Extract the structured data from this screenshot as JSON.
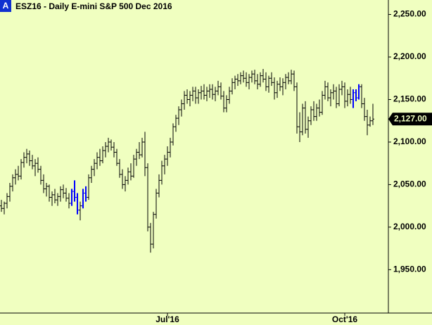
{
  "chart_data": {
    "type": "ohlc",
    "title": "ESZ16 - Daily  E-mini S&P 500 Dec 2016",
    "badge": "A",
    "color": "#000000",
    "highlight_color": "#0000ff",
    "highlighted": [
      25,
      26,
      27,
      29,
      30,
      125,
      126,
      127
    ],
    "ylim": [
      1899,
      2267
    ],
    "yticks": [
      {
        "value": 1950,
        "label": "1,950.00"
      },
      {
        "value": 2000,
        "label": "2,000.00"
      },
      {
        "value": 2050,
        "label": "2,050.00"
      },
      {
        "value": 2100,
        "label": "2,100.00"
      },
      {
        "value": 2150,
        "label": "2,150.00"
      },
      {
        "value": 2200,
        "label": "2,200.00"
      },
      {
        "value": 2250,
        "label": "2,250.00"
      }
    ],
    "xlim": [
      -0.5,
      137.5
    ],
    "xticks": [
      {
        "value": 59,
        "label": "Jul'16"
      },
      {
        "value": 122,
        "label": "Oct'16"
      }
    ],
    "last": {
      "value": 2127,
      "label": "2,127.00"
    },
    "ohlc": [
      [
        2025,
        2032,
        2018,
        2022
      ],
      [
        2022,
        2030,
        2015,
        2028
      ],
      [
        2028,
        2040,
        2022,
        2036
      ],
      [
        2036,
        2052,
        2030,
        2048
      ],
      [
        2048,
        2062,
        2042,
        2058
      ],
      [
        2058,
        2068,
        2050,
        2062
      ],
      [
        2062,
        2072,
        2055,
        2060
      ],
      [
        2060,
        2080,
        2056,
        2076
      ],
      [
        2076,
        2088,
        2070,
        2082
      ],
      [
        2082,
        2092,
        2075,
        2086
      ],
      [
        2086,
        2090,
        2072,
        2078
      ],
      [
        2078,
        2085,
        2068,
        2072
      ],
      [
        2072,
        2080,
        2060,
        2075
      ],
      [
        2075,
        2082,
        2064,
        2068
      ],
      [
        2068,
        2072,
        2050,
        2055
      ],
      [
        2055,
        2062,
        2040,
        2045
      ],
      [
        2045,
        2052,
        2036,
        2048
      ],
      [
        2048,
        2050,
        2030,
        2035
      ],
      [
        2035,
        2042,
        2025,
        2038
      ],
      [
        2038,
        2045,
        2028,
        2032
      ],
      [
        2032,
        2040,
        2025,
        2036
      ],
      [
        2036,
        2048,
        2030,
        2044
      ],
      [
        2044,
        2050,
        2034,
        2040
      ],
      [
        2040,
        2046,
        2030,
        2034
      ],
      [
        2034,
        2040,
        2022,
        2028
      ],
      [
        2028,
        2045,
        2025,
        2042
      ],
      [
        2042,
        2055,
        2030,
        2035
      ],
      [
        2035,
        2040,
        2015,
        2020
      ],
      [
        2020,
        2030,
        2008,
        2025
      ],
      [
        2025,
        2045,
        2022,
        2040
      ],
      [
        2040,
        2048,
        2030,
        2035
      ],
      [
        2035,
        2062,
        2032,
        2058
      ],
      [
        2058,
        2072,
        2052,
        2068
      ],
      [
        2068,
        2080,
        2060,
        2075
      ],
      [
        2075,
        2088,
        2068,
        2082
      ],
      [
        2082,
        2092,
        2072,
        2078
      ],
      [
        2078,
        2095,
        2075,
        2090
      ],
      [
        2090,
        2100,
        2082,
        2095
      ],
      [
        2095,
        2105,
        2088,
        2100
      ],
      [
        2100,
        2103,
        2090,
        2094
      ],
      [
        2094,
        2100,
        2082,
        2088
      ],
      [
        2088,
        2092,
        2072,
        2075
      ],
      [
        2075,
        2080,
        2058,
        2062
      ],
      [
        2062,
        2068,
        2045,
        2050
      ],
      [
        2050,
        2060,
        2042,
        2055
      ],
      [
        2055,
        2070,
        2050,
        2065
      ],
      [
        2065,
        2075,
        2055,
        2060
      ],
      [
        2060,
        2085,
        2058,
        2080
      ],
      [
        2080,
        2092,
        2072,
        2088
      ],
      [
        2088,
        2100,
        2080,
        2085
      ],
      [
        2085,
        2105,
        2082,
        2100
      ],
      [
        2100,
        2112,
        2060,
        2070
      ],
      [
        2070,
        2075,
        1995,
        2000
      ],
      [
        2000,
        2005,
        1970,
        1980
      ],
      [
        1980,
        2018,
        1975,
        2015
      ],
      [
        2015,
        2045,
        2010,
        2040
      ],
      [
        2040,
        2062,
        2035,
        2055
      ],
      [
        2055,
        2078,
        2050,
        2072
      ],
      [
        2072,
        2085,
        2062,
        2080
      ],
      [
        2080,
        2095,
        2072,
        2088
      ],
      [
        2088,
        2105,
        2082,
        2100
      ],
      [
        2100,
        2122,
        2096,
        2118
      ],
      [
        2118,
        2132,
        2112,
        2128
      ],
      [
        2128,
        2142,
        2120,
        2138
      ],
      [
        2138,
        2150,
        2130,
        2145
      ],
      [
        2145,
        2160,
        2138,
        2155
      ],
      [
        2155,
        2162,
        2145,
        2150
      ],
      [
        2150,
        2160,
        2142,
        2155
      ],
      [
        2155,
        2165,
        2148,
        2160
      ],
      [
        2160,
        2165,
        2145,
        2152
      ],
      [
        2152,
        2162,
        2145,
        2158
      ],
      [
        2158,
        2166,
        2150,
        2160
      ],
      [
        2160,
        2168,
        2150,
        2155
      ],
      [
        2155,
        2165,
        2148,
        2160
      ],
      [
        2160,
        2168,
        2152,
        2162
      ],
      [
        2162,
        2168,
        2150,
        2156
      ],
      [
        2156,
        2165,
        2148,
        2160
      ],
      [
        2160,
        2172,
        2155,
        2165
      ],
      [
        2165,
        2170,
        2150,
        2154
      ],
      [
        2154,
        2160,
        2135,
        2140
      ],
      [
        2140,
        2155,
        2135,
        2150
      ],
      [
        2150,
        2165,
        2145,
        2160
      ],
      [
        2160,
        2175,
        2156,
        2170
      ],
      [
        2170,
        2178,
        2162,
        2174
      ],
      [
        2174,
        2180,
        2166,
        2172
      ],
      [
        2172,
        2182,
        2168,
        2178
      ],
      [
        2178,
        2184,
        2170,
        2175
      ],
      [
        2175,
        2182,
        2165,
        2170
      ],
      [
        2170,
        2180,
        2162,
        2176
      ],
      [
        2176,
        2184,
        2170,
        2180
      ],
      [
        2180,
        2185,
        2168,
        2172
      ],
      [
        2172,
        2180,
        2162,
        2168
      ],
      [
        2168,
        2182,
        2165,
        2178
      ],
      [
        2178,
        2186,
        2170,
        2174
      ],
      [
        2174,
        2182,
        2160,
        2165
      ],
      [
        2165,
        2178,
        2158,
        2175
      ],
      [
        2175,
        2182,
        2166,
        2170
      ],
      [
        2170,
        2176,
        2150,
        2158
      ],
      [
        2158,
        2172,
        2152,
        2168
      ],
      [
        2168,
        2176,
        2160,
        2165
      ],
      [
        2165,
        2175,
        2155,
        2170
      ],
      [
        2170,
        2180,
        2162,
        2176
      ],
      [
        2176,
        2182,
        2168,
        2172
      ],
      [
        2172,
        2185,
        2168,
        2180
      ],
      [
        2180,
        2184,
        2160,
        2165
      ],
      [
        2165,
        2170,
        2110,
        2118
      ],
      [
        2118,
        2135,
        2100,
        2112
      ],
      [
        2112,
        2145,
        2108,
        2140
      ],
      [
        2140,
        2148,
        2110,
        2115
      ],
      [
        2115,
        2130,
        2105,
        2125
      ],
      [
        2125,
        2142,
        2120,
        2138
      ],
      [
        2138,
        2148,
        2125,
        2130
      ],
      [
        2130,
        2145,
        2125,
        2140
      ],
      [
        2140,
        2150,
        2130,
        2135
      ],
      [
        2135,
        2160,
        2132,
        2155
      ],
      [
        2155,
        2172,
        2150,
        2165
      ],
      [
        2165,
        2170,
        2148,
        2152
      ],
      [
        2152,
        2162,
        2142,
        2158
      ],
      [
        2158,
        2168,
        2150,
        2160
      ],
      [
        2160,
        2165,
        2140,
        2145
      ],
      [
        2145,
        2168,
        2142,
        2162
      ],
      [
        2162,
        2172,
        2155,
        2165
      ],
      [
        2165,
        2170,
        2140,
        2148
      ],
      [
        2148,
        2162,
        2142,
        2156
      ],
      [
        2156,
        2165,
        2145,
        2150
      ],
      [
        2150,
        2162,
        2140,
        2158
      ],
      [
        2158,
        2162,
        2148,
        2152
      ],
      [
        2152,
        2168,
        2150,
        2165
      ],
      [
        2165,
        2168,
        2140,
        2145
      ],
      [
        2145,
        2152,
        2125,
        2130
      ],
      [
        2130,
        2138,
        2108,
        2120
      ],
      [
        2120,
        2130,
        2118,
        2125
      ],
      [
        2125,
        2145,
        2120,
        2127
      ]
    ]
  }
}
